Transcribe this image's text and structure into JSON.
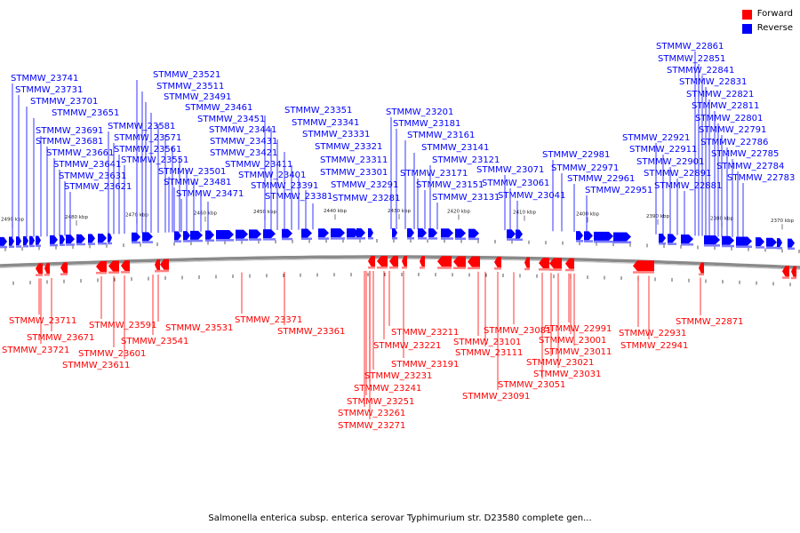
{
  "legend": {
    "forward_label": "Forward",
    "reverse_label": "Reverse",
    "forward_color": "#ff0000",
    "reverse_color": "#0000ff"
  },
  "caption": "Salmonella enterica subsp. enterica serovar Typhimurium str. D23580 complete gen...",
  "axis_ticks": [
    "2490 kbp",
    "2480 kbp",
    "2470 kbp",
    "2460 kbp",
    "2450 kbp",
    "2440 kbp",
    "2430 kbp",
    "2420 kbp",
    "2410 kbp",
    "2400 kbp",
    "2390 kbp",
    "2380 kbp",
    "2370 kbp"
  ],
  "reverse_genes": [
    "STMMW_23741",
    "STMMW_23731",
    "STMMW_23701",
    "STMMW_23651",
    "STMMW_23691",
    "STMMW_23681",
    "STMMW_23661",
    "STMMW_23641",
    "STMMW_23631",
    "STMMW_23621",
    "STMMW_23521",
    "STMMW_23511",
    "STMMW_23491",
    "STMMW_23461",
    "STMMW_23451",
    "STMMW_23441",
    "STMMW_23431",
    "STMMW_23421",
    "STMMW_23411",
    "STMMW_23401",
    "STMMW_23391",
    "STMMW_23381",
    "STMMW_23581",
    "STMMW_23571",
    "STMMW_23561",
    "STMMW_23551",
    "STMMW_23501",
    "STMMW_23481",
    "STMMW_23471",
    "STMMW_23351",
    "STMMW_23341",
    "STMMW_23331",
    "STMMW_23321",
    "STMMW_23311",
    "STMMW_23301",
    "STMMW_23291",
    "STMMW_23281",
    "STMMW_23201",
    "STMMW_23181",
    "STMMW_23161",
    "STMMW_23141",
    "STMMW_23121",
    "STMMW_23171",
    "STMMW_23151",
    "STMMW_23131",
    "STMMW_23071",
    "STMMW_23061",
    "STMMW_23041",
    "STMMW_22981",
    "STMMW_22971",
    "STMMW_22961",
    "STMMW_22951",
    "STMMW_22921",
    "STMMW_22911",
    "STMMW_22901",
    "STMMW_22891",
    "STMMW_22881",
    "STMMW_22861",
    "STMMW_22851",
    "STMMW_22841",
    "STMMW_22831",
    "STMMW_22821",
    "STMMW_22811",
    "STMMW_22801",
    "STMMW_22791",
    "STMMW_22786",
    "STMMW_22785",
    "STMMW_22784",
    "STMMW_22783"
  ],
  "forward_genes": [
    "STMMW_23711",
    "STMMW_23671",
    "STMMW_23721",
    "STMMW_23591",
    "STMMW_23601",
    "STMMW_23611",
    "STMMW_23541",
    "STMMW_23531",
    "STMMW_23371",
    "STMMW_23361",
    "STMMW_23211",
    "STMMW_23221",
    "STMMW_23191",
    "STMMW_23231",
    "STMMW_23241",
    "STMMW_23251",
    "STMMW_23261",
    "STMMW_23271",
    "STMMW_23101",
    "STMMW_23111",
    "STMMW_23091",
    "STMMW_23081",
    "STMMW_23021",
    "STMMW_23031",
    "STMMW_23051",
    "STMMW_22991",
    "STMMW_23001",
    "STMMW_23011",
    "STMMW_22931",
    "STMMW_22941",
    "STMMW_22871"
  ]
}
